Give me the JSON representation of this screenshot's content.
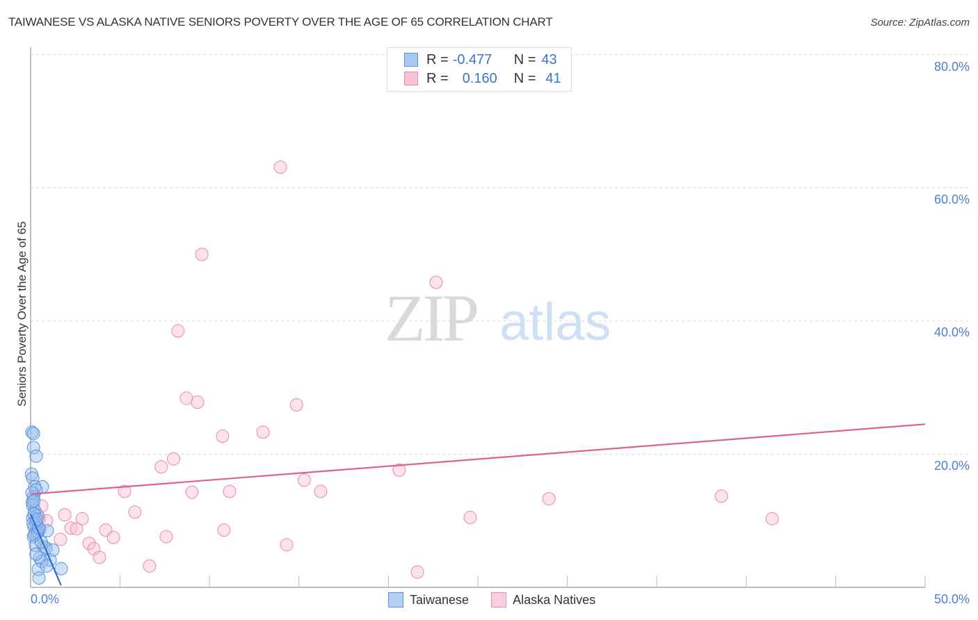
{
  "header": {
    "title": "TAIWANESE VS ALASKA NATIVE SENIORS POVERTY OVER THE AGE OF 65 CORRELATION CHART",
    "source": "Source: ZipAtlas.com"
  },
  "legend": {
    "rows": [
      {
        "series": "Taiwanese",
        "r_label": "R =",
        "r_value": "-0.477",
        "n_label": "N =",
        "n_value": "43",
        "color": "#a9c8f0",
        "border": "#5b8fd9"
      },
      {
        "series": "Alaska Natives",
        "r_label": "R =",
        "r_value": "0.160",
        "n_label": "N =",
        "n_value": "41",
        "color": "#f9c4d4",
        "border": "#e88aa8"
      }
    ]
  },
  "bottom_legend": [
    {
      "label": "Taiwanese",
      "color": "#b3cff2",
      "border": "#5b8fd9"
    },
    {
      "label": "Alaska Natives",
      "color": "#fbd0dc",
      "border": "#e88aa8"
    }
  ],
  "axes": {
    "ylabel": "Seniors Poverty Over the Age of 65",
    "y_ticks": [
      "80.0%",
      "60.0%",
      "40.0%",
      "20.0%"
    ],
    "x_ticks": [
      "0.0%",
      "50.0%"
    ]
  },
  "watermark": {
    "zip": "ZIP",
    "atlas": "atlas"
  },
  "colors": {
    "blue": "#3a7bd5",
    "pink": "#e0608a",
    "tick_text": "#4a7fd4"
  },
  "chart_data": {
    "type": "scatter",
    "title": "TAIWANESE VS ALASKA NATIVE SENIORS POVERTY OVER THE AGE OF 65 CORRELATION CHART",
    "xlabel": "",
    "ylabel": "Seniors Poverty Over the Age of 65",
    "xlim": [
      0,
      50
    ],
    "ylim": [
      0,
      82
    ],
    "x_tick_labels": [
      "0.0%",
      "50.0%"
    ],
    "y_tick_labels": [
      "20.0%",
      "40.0%",
      "60.0%",
      "80.0%"
    ],
    "grid": "horizontal dashed",
    "legend_position": "top-center and bottom",
    "series": [
      {
        "name": "Taiwanese",
        "R": -0.477,
        "N": 43,
        "trend": {
          "x": [
            0.0,
            1.7
          ],
          "y": [
            11.0,
            0.3
          ]
        },
        "points": [
          [
            0.08,
            23.3
          ],
          [
            0.16,
            23.1
          ],
          [
            0.16,
            21.0
          ],
          [
            0.31,
            19.7
          ],
          [
            0.05,
            17.0
          ],
          [
            0.12,
            16.4
          ],
          [
            0.66,
            15.1
          ],
          [
            0.23,
            15.1
          ],
          [
            0.31,
            14.6
          ],
          [
            0.16,
            13.6
          ],
          [
            0.12,
            12.3
          ],
          [
            0.23,
            11.5
          ],
          [
            0.39,
            10.8
          ],
          [
            0.12,
            10.4
          ],
          [
            0.31,
            9.5
          ],
          [
            0.19,
            9.1
          ],
          [
            0.51,
            8.7
          ],
          [
            0.93,
            8.5
          ],
          [
            0.35,
            8.1
          ],
          [
            0.16,
            7.6
          ],
          [
            0.27,
            6.3
          ],
          [
            0.74,
            6.1
          ],
          [
            0.86,
            5.9
          ],
          [
            1.24,
            5.6
          ],
          [
            0.51,
            4.4
          ],
          [
            1.09,
            4.1
          ],
          [
            0.62,
            3.9
          ],
          [
            0.43,
            2.7
          ],
          [
            1.71,
            2.8
          ],
          [
            0.47,
            1.4
          ],
          [
            0.1,
            12.8
          ],
          [
            0.2,
            11.0
          ],
          [
            0.28,
            9.8
          ],
          [
            0.4,
            8.3
          ],
          [
            0.14,
            9.6
          ],
          [
            0.22,
            7.9
          ],
          [
            0.45,
            8.9
          ],
          [
            0.08,
            14.2
          ],
          [
            0.18,
            13.0
          ],
          [
            0.35,
            10.2
          ],
          [
            0.6,
            6.8
          ],
          [
            0.3,
            5.0
          ],
          [
            0.9,
            3.2
          ]
        ]
      },
      {
        "name": "Alaska Natives",
        "R": 0.16,
        "N": 41,
        "trend": {
          "x": [
            0.0,
            50.0
          ],
          "y": [
            14.0,
            24.5
          ]
        },
        "points": [
          [
            13.96,
            63.1
          ],
          [
            9.57,
            50.0
          ],
          [
            22.67,
            45.8
          ],
          [
            8.24,
            38.5
          ],
          [
            8.71,
            28.4
          ],
          [
            9.33,
            27.8
          ],
          [
            14.86,
            27.4
          ],
          [
            10.73,
            22.7
          ],
          [
            12.99,
            23.3
          ],
          [
            7.99,
            19.3
          ],
          [
            7.3,
            18.1
          ],
          [
            20.6,
            17.6
          ],
          [
            15.3,
            16.1
          ],
          [
            5.25,
            14.4
          ],
          [
            9.02,
            14.3
          ],
          [
            11.12,
            14.4
          ],
          [
            16.21,
            14.4
          ],
          [
            28.97,
            13.3
          ],
          [
            38.61,
            13.7
          ],
          [
            5.83,
            11.3
          ],
          [
            1.91,
            10.9
          ],
          [
            2.88,
            10.3
          ],
          [
            24.57,
            10.5
          ],
          [
            41.45,
            10.3
          ],
          [
            0.89,
            10.0
          ],
          [
            2.26,
            8.9
          ],
          [
            2.57,
            8.8
          ],
          [
            4.2,
            8.6
          ],
          [
            10.81,
            8.6
          ],
          [
            4.63,
            7.5
          ],
          [
            7.58,
            7.6
          ],
          [
            1.67,
            7.2
          ],
          [
            3.27,
            6.6
          ],
          [
            14.31,
            6.4
          ],
          [
            3.54,
            5.8
          ],
          [
            3.85,
            4.5
          ],
          [
            6.65,
            3.2
          ],
          [
            21.62,
            2.3
          ],
          [
            0.16,
            13.6
          ],
          [
            0.47,
            10.3
          ],
          [
            0.62,
            12.2
          ]
        ]
      }
    ]
  }
}
